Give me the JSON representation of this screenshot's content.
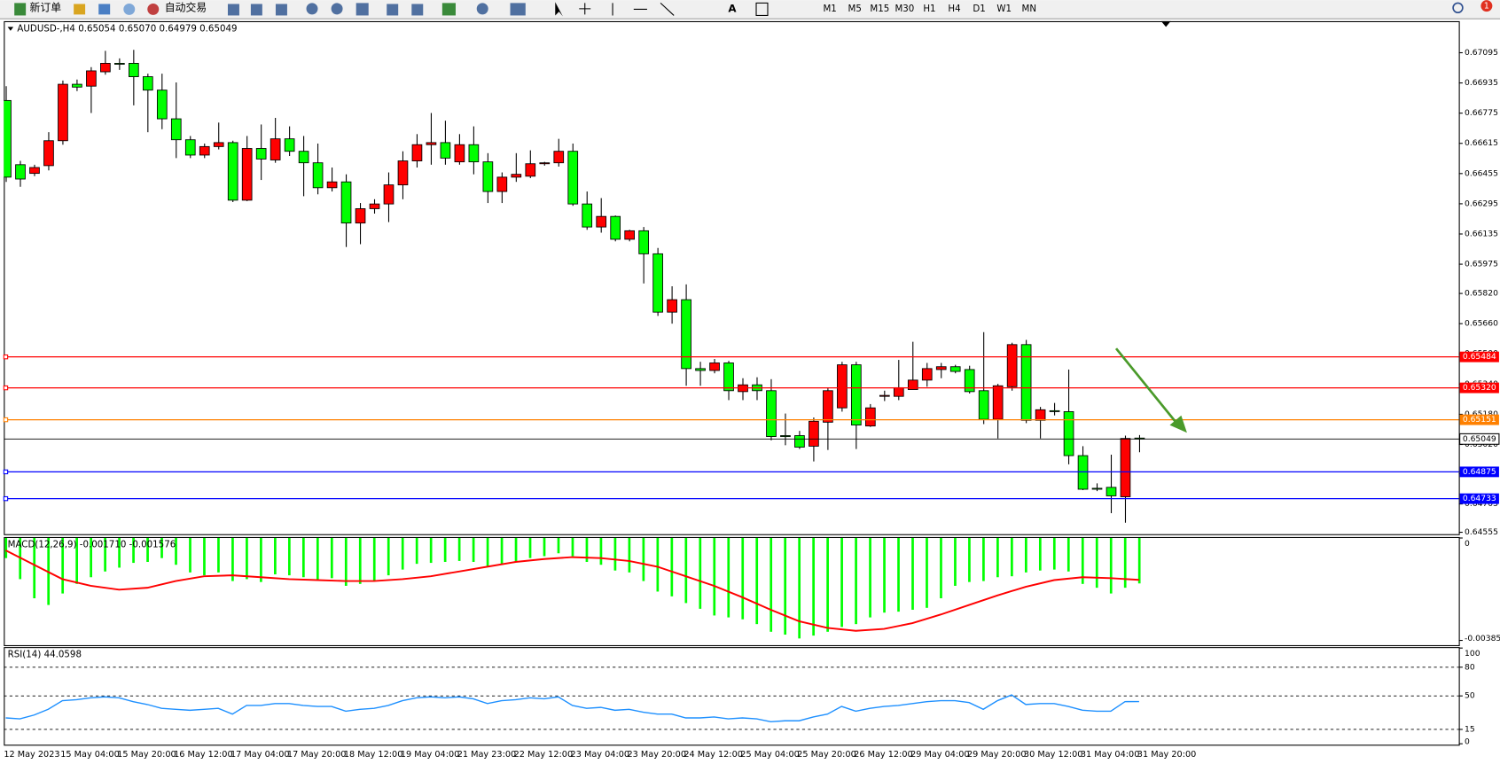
{
  "toolbar": {
    "buttons": [
      "新订单",
      "自动交易"
    ],
    "timeframes": [
      "M1",
      "M5",
      "M15",
      "M30",
      "H1",
      "H4",
      "D1",
      "W1",
      "MN"
    ],
    "badge": "1"
  },
  "chart_data": [
    {
      "type": "candlestick",
      "title": "AUDUSD-,H4",
      "readout": [
        "0.65054",
        "0.65070",
        "0.64979",
        "0.65049"
      ],
      "up_color": "#ff0000",
      "down_color": "#00ff00",
      "categories": [
        "12 May 2023",
        null,
        null,
        null,
        "15 May 04:00",
        null,
        null,
        null,
        "15 May 20:00",
        null,
        null,
        null,
        "16 May 12:00",
        null,
        null,
        null,
        "17 May 04:00",
        null,
        null,
        null,
        "17 May 20:00",
        null,
        null,
        null,
        "18 May 12:00",
        null,
        null,
        null,
        "19 May 04:00",
        null,
        null,
        null,
        "21 May 23:00",
        null,
        null,
        null,
        "22 May 12:00",
        null,
        null,
        null,
        "23 May 04:00",
        null,
        null,
        null,
        "23 May 20:00",
        null,
        null,
        null,
        "24 May 12:00",
        null,
        null,
        null,
        "25 May 04:00",
        null,
        null,
        null,
        "25 May 20:00",
        null,
        null,
        null,
        "26 May 12:00",
        null,
        null,
        null,
        "29 May 04:00",
        null,
        null,
        null,
        "29 May 20:00",
        null,
        null,
        null,
        "30 May 12:00",
        null,
        null,
        null,
        "31 May 04:00",
        null,
        null,
        null,
        "31 May 20:00"
      ],
      "open": [
        0.66842,
        0.66502,
        0.66456,
        0.66497,
        0.66629,
        0.66928,
        0.66918,
        0.66994,
        0.67039,
        0.67039,
        0.66968,
        0.66897,
        0.66745,
        0.66634,
        0.66553,
        0.66598,
        0.66619,
        0.66314,
        0.66588,
        0.66527,
        0.66639,
        0.66573,
        0.66512,
        0.6638,
        0.66411,
        0.66193,
        0.66269,
        0.66294,
        0.66395,
        0.66522,
        0.66608,
        0.66619,
        0.66517,
        0.66608,
        0.66517,
        0.6636,
        0.66436,
        0.66441,
        0.66507,
        0.66512,
        0.66573,
        0.66294,
        0.66172,
        0.66228,
        0.66107,
        0.66152,
        0.6603,
        0.65721,
        0.65787,
        0.65422,
        0.65412,
        0.65452,
        0.653,
        0.65336,
        0.65305,
        0.65067,
        0.65067,
        0.65011,
        0.65138,
        0.65214,
        0.65442,
        0.65118,
        0.65275,
        0.65275,
        0.65311,
        0.65361,
        0.65417,
        0.65432,
        0.65417,
        0.65305,
        0.65153,
        0.65326,
        0.65549,
        0.65148,
        0.65199,
        0.65194,
        0.64961,
        0.64788,
        0.64793,
        0.64743,
        0.65054
      ],
      "high": [
        0.66918,
        0.66522,
        0.66502,
        0.66674,
        0.66948,
        0.66953,
        0.67019,
        0.67105,
        0.67065,
        0.6711,
        0.66984,
        0.66984,
        0.66938,
        0.66654,
        0.66614,
        0.66725,
        0.66629,
        0.66654,
        0.66715,
        0.6675,
        0.66705,
        0.66654,
        0.66614,
        0.66487,
        0.66451,
        0.66299,
        0.66319,
        0.66461,
        0.66573,
        0.66664,
        0.66776,
        0.66735,
        0.66664,
        0.66705,
        0.66563,
        0.66461,
        0.66563,
        0.66578,
        0.66517,
        0.66639,
        0.66614,
        0.6636,
        0.66325,
        0.66233,
        0.66157,
        0.66172,
        0.66061,
        0.65858,
        0.65868,
        0.65458,
        0.65473,
        0.65463,
        0.65371,
        0.65376,
        0.65366,
        0.65184,
        0.65092,
        0.65163,
        0.65321,
        0.65458,
        0.65458,
        0.65234,
        0.65305,
        0.65468,
        0.65564,
        0.65452,
        0.65452,
        0.65442,
        0.65437,
        0.65615,
        0.65341,
        0.65559,
        0.65574,
        0.65219,
        0.6524,
        0.65417,
        0.65011,
        0.64814,
        0.64966,
        0.65067,
        0.6507
      ],
      "low": [
        0.66411,
        0.66385,
        0.66441,
        0.66472,
        0.66608,
        0.66892,
        0.66776,
        0.66979,
        0.67004,
        0.66816,
        0.66674,
        0.6669,
        0.66537,
        0.66537,
        0.66537,
        0.66583,
        0.66304,
        0.66309,
        0.66421,
        0.66512,
        0.66548,
        0.66335,
        0.66345,
        0.6636,
        0.66066,
        0.66081,
        0.66243,
        0.66198,
        0.66319,
        0.66487,
        0.66502,
        0.66502,
        0.66502,
        0.66451,
        0.66299,
        0.66299,
        0.66411,
        0.66431,
        0.66497,
        0.66492,
        0.66284,
        0.66157,
        0.66142,
        0.66096,
        0.66096,
        0.65873,
        0.65701,
        0.6566,
        0.65331,
        0.65331,
        0.65397,
        0.65255,
        0.65255,
        0.65255,
        0.65042,
        0.65016,
        0.64996,
        0.6493,
        0.64991,
        0.65194,
        0.64996,
        0.65113,
        0.6525,
        0.65255,
        0.65311,
        0.65326,
        0.65371,
        0.65397,
        0.6529,
        0.65128,
        0.65052,
        0.65305,
        0.65133,
        0.65052,
        0.65174,
        0.64915,
        0.64778,
        0.64773,
        0.64656,
        0.64606,
        0.64979
      ],
      "close": [
        0.66436,
        0.66426,
        0.66487,
        0.66629,
        0.66928,
        0.66913,
        0.66999,
        0.67039,
        0.67034,
        0.66968,
        0.66897,
        0.66745,
        0.66634,
        0.66553,
        0.66598,
        0.66619,
        0.66314,
        0.66588,
        0.66532,
        0.66639,
        0.66573,
        0.66512,
        0.6638,
        0.66411,
        0.66193,
        0.66269,
        0.66294,
        0.66395,
        0.66522,
        0.66608,
        0.66619,
        0.66537,
        0.66608,
        0.66517,
        0.6636,
        0.66436,
        0.66451,
        0.66507,
        0.66512,
        0.66573,
        0.66294,
        0.66172,
        0.66228,
        0.66107,
        0.66152,
        0.6603,
        0.65721,
        0.65787,
        0.65422,
        0.65412,
        0.65452,
        0.65305,
        0.65336,
        0.65305,
        0.65062,
        0.65062,
        0.65006,
        0.65143,
        0.65305,
        0.65442,
        0.65123,
        0.65214,
        0.6528,
        0.65321,
        0.65361,
        0.65422,
        0.65432,
        0.65407,
        0.653,
        0.65153,
        0.65331,
        0.65549,
        0.65148,
        0.65204,
        0.65194,
        0.64961,
        0.64783,
        0.64783,
        0.64748,
        0.65052,
        0.65049
      ],
      "ylim": [
        0.64545,
        0.67262
      ],
      "yticks": [
        0.67095,
        0.66935,
        0.66775,
        0.66615,
        0.66455,
        0.66295,
        0.66135,
        0.65975,
        {
          "value": 0.6582,
          "label": "0.65820"
        },
        {
          "value": 0.6566,
          "label": "0.65660"
        },
        {
          "value": 0.655,
          "label": "0.65500"
        },
        {
          "value": 0.6534,
          "label": "0.65340"
        },
        {
          "value": 0.6518,
          "label": "0.65180"
        },
        {
          "value": 0.6502,
          "label": "0.65020"
        },
        0.64865,
        0.64705,
        0.64555
      ],
      "levels": [
        {
          "value": 0.65484,
          "color": "#ff0000"
        },
        {
          "value": 0.6532,
          "label": "0.65320",
          "color": "#ff0000"
        },
        {
          "value": 0.65151,
          "color": "#ff8000"
        },
        {
          "value": 0.64875,
          "color": "#0000ff"
        },
        {
          "value": 0.64733,
          "color": "#0000ff"
        }
      ]
    },
    {
      "type": "bar",
      "title": "MACD(12,26,9)",
      "readout": [
        "-0.001710",
        "-0.001576"
      ],
      "ylim": [
        -0.003853,
        0
      ],
      "yticks": [
        0,
        -0.003853
      ],
      "series": [
        {
          "type": "bar",
          "color": "#00ff00",
          "values": [
            -0.000756,
            -0.001548,
            -0.002268,
            -0.00252,
            -0.002088,
            -0.001728,
            -0.001476,
            -0.00126,
            -0.001116,
            -0.000936,
            -0.0009,
            -0.000756,
            -0.001008,
            -0.001296,
            -0.001404,
            -0.001296,
            -0.00162,
            -0.001548,
            -0.001656,
            -0.001368,
            -0.001404,
            -0.001476,
            -0.001584,
            -0.001512,
            -0.0018,
            -0.001728,
            -0.00162,
            -0.001404,
            -0.001188,
            -0.000972,
            -0.000936,
            -0.0009,
            -0.000864,
            -0.0009,
            -0.00108,
            -0.001008,
            -0.0009,
            -0.000756,
            -0.000684,
            -0.000576,
            -0.000684,
            -0.0009,
            -0.001008,
            -0.001224,
            -0.001296,
            -0.00162,
            -0.002016,
            -0.002196,
            -0.002448,
            -0.002664,
            -0.002916,
            -0.002988,
            -0.00306,
            -0.00324,
            -0.003528,
            -0.003636,
            -0.00378,
            -0.003672,
            -0.003528,
            -0.003348,
            -0.00324,
            -0.002988,
            -0.002808,
            -0.002772,
            -0.0027,
            -0.002628,
            -0.002268,
            -0.0018,
            -0.001656,
            -0.00162,
            -0.001476,
            -0.00144,
            -0.001296,
            -0.001224,
            -0.001188,
            -0.00126,
            -0.001728,
            -0.001872,
            -0.002088,
            -0.001872,
            -0.00171
          ]
        },
        {
          "type": "line",
          "color": "#ff0000",
          "x": [
            0,
            2,
            4,
            6,
            8,
            10,
            12,
            14,
            16,
            18,
            20,
            22,
            24,
            26,
            28,
            30,
            32,
            34,
            36,
            38,
            40,
            42,
            44,
            46,
            48,
            50,
            52,
            54,
            56,
            58,
            60,
            62,
            64,
            66,
            68,
            70,
            72,
            74,
            76,
            78,
            80
          ],
          "values": [
            -0.000468,
            -0.001008,
            -0.001548,
            -0.0018,
            -0.001944,
            -0.001872,
            -0.00162,
            -0.00144,
            -0.001404,
            -0.001476,
            -0.001548,
            -0.001584,
            -0.00162,
            -0.00162,
            -0.001548,
            -0.00144,
            -0.00126,
            -0.00108,
            -0.0009,
            -0.000792,
            -0.00072,
            -0.000756,
            -0.000864,
            -0.00108,
            -0.00144,
            -0.0018,
            -0.002232,
            -0.0027,
            -0.003132,
            -0.003384,
            -0.003492,
            -0.00342,
            -0.003204,
            -0.00288,
            -0.00252,
            -0.00216,
            -0.001836,
            -0.001584,
            -0.001476,
            -0.001512,
            -0.001576
          ]
        }
      ]
    },
    {
      "type": "line",
      "title": "RSI(14)",
      "color": "#1e90ff",
      "values": [
        27,
        26,
        30,
        36,
        45,
        46,
        48,
        49,
        48,
        44,
        41,
        37,
        36,
        35,
        36,
        37,
        31,
        40,
        40,
        42,
        42,
        40,
        39,
        39,
        34,
        36,
        37,
        40,
        45,
        48,
        49,
        48,
        49,
        47,
        42,
        45,
        46,
        48,
        47,
        49,
        40,
        37,
        38,
        35,
        36,
        33,
        31,
        31,
        27,
        27,
        28,
        26,
        27,
        26,
        23,
        24,
        24,
        28,
        31,
        39,
        34,
        37,
        39,
        40,
        42,
        44,
        45,
        45,
        43,
        36,
        45,
        51,
        41,
        42,
        42,
        39,
        35,
        34,
        34,
        44,
        44.0598
      ],
      "ylim": [
        0,
        100
      ],
      "yticks": [
        100,
        80,
        50,
        15,
        0
      ],
      "levels": [
        80,
        50,
        15
      ]
    }
  ]
}
